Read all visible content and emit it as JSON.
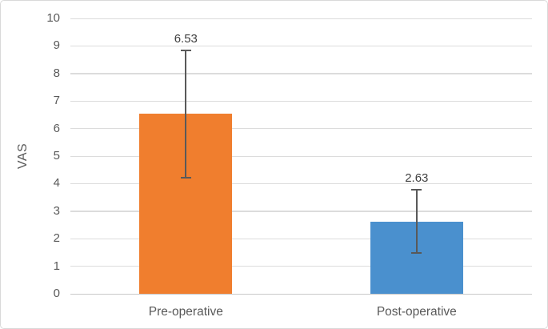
{
  "chart_data": {
    "type": "bar",
    "title": "",
    "xlabel": "",
    "ylabel": "VAS",
    "categories": [
      "Pre-operative",
      "Post-operative"
    ],
    "series": [
      {
        "name": "VAS",
        "values": [
          6.53,
          2.63
        ],
        "error": [
          2.32,
          1.15
        ],
        "data_labels": [
          "6.53",
          "2.63"
        ],
        "colors": [
          "#F07E2E",
          "#4A90CE"
        ]
      }
    ],
    "ylim": [
      0,
      10
    ],
    "yticks": [
      0,
      1,
      2,
      3,
      4,
      5,
      6,
      7,
      8,
      9,
      10
    ],
    "grid": true,
    "legend": false,
    "error_bars_visible": true
  },
  "style": {
    "background": "#FFFFFF",
    "border_color": "#D9D9D9",
    "gridline_color": "#DCDCDC",
    "axis_line_color": "#C8C8C8",
    "tick_label_color": "#595959",
    "category_label_color": "#595959",
    "data_label_color": "#3F3F3F",
    "error_bar_color": "#595959",
    "ylabel_color": "#595959"
  }
}
